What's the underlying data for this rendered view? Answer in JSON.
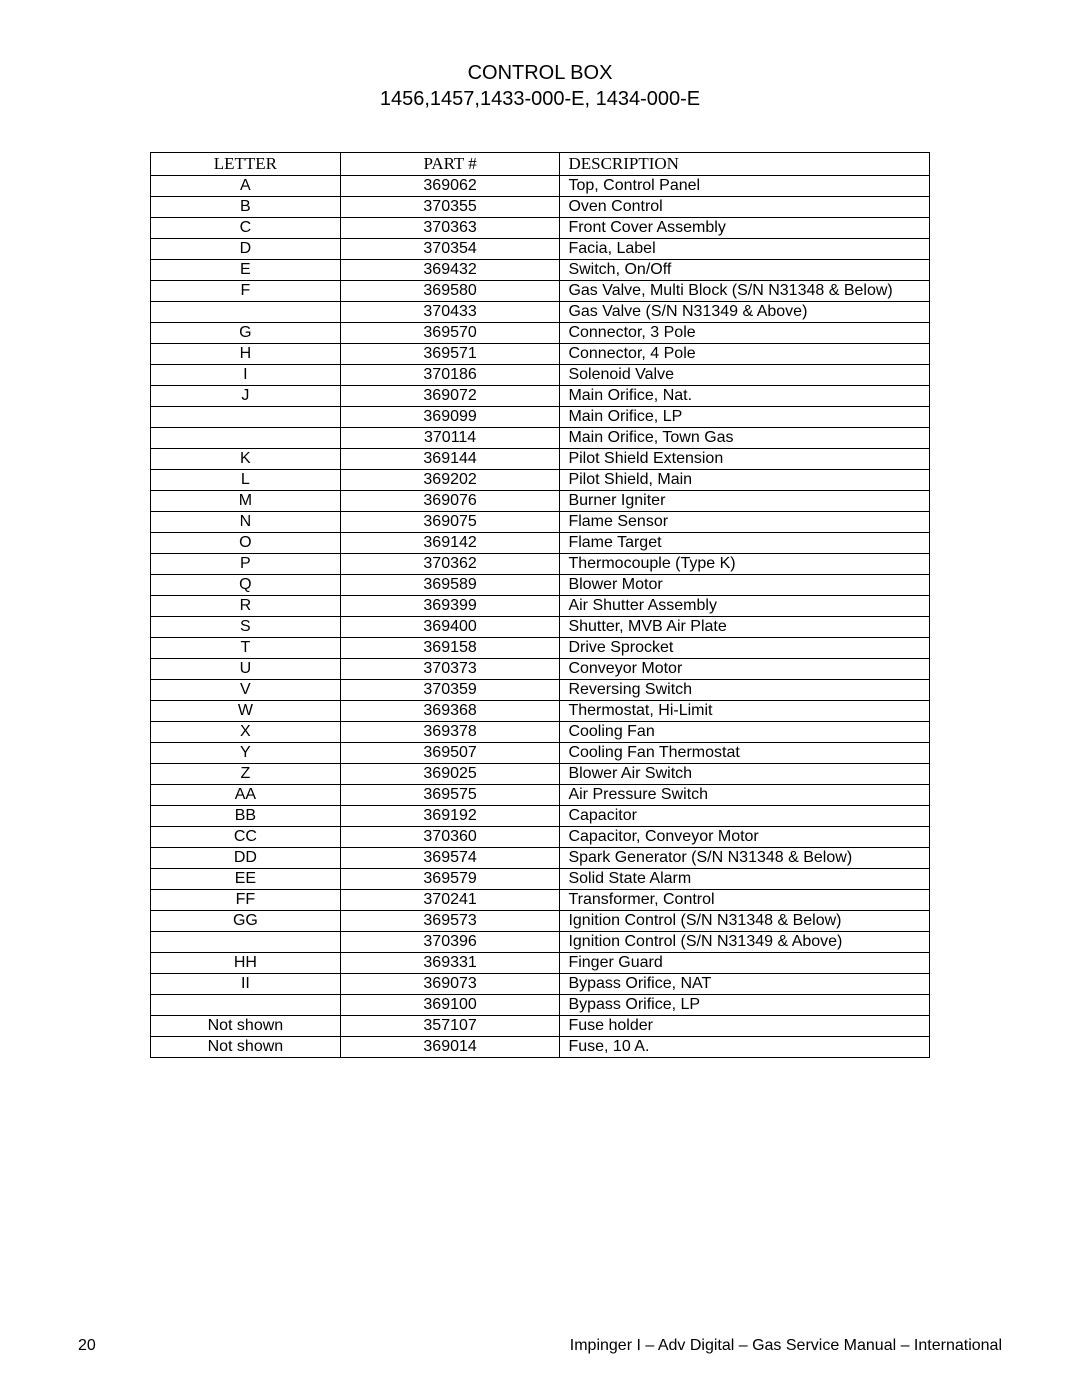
{
  "title": {
    "line1": "CONTROL BOX",
    "line2": "1456,1457,1433-000-E, 1434-000-E"
  },
  "table": {
    "headers": {
      "letter": "LETTER",
      "part": "PART #",
      "description": "DESCRIPTION"
    },
    "rows": [
      {
        "letter": "A",
        "part": "369062",
        "description": "Top, Control Panel"
      },
      {
        "letter": "B",
        "part": "370355",
        "description": "Oven Control"
      },
      {
        "letter": "C",
        "part": "370363",
        "description": "Front Cover Assembly"
      },
      {
        "letter": "D",
        "part": "370354",
        "description": "Facia, Label"
      },
      {
        "letter": "E",
        "part": "369432",
        "description": "Switch, On/Off"
      },
      {
        "letter": "F",
        "part": "369580",
        "description": "Gas Valve, Multi Block (S/N N31348 & Below)"
      },
      {
        "letter": "",
        "part": "370433",
        "description": "Gas Valve (S/N N31349 & Above)"
      },
      {
        "letter": "G",
        "part": "369570",
        "description": "Connector, 3 Pole"
      },
      {
        "letter": "H",
        "part": "369571",
        "description": "Connector, 4 Pole"
      },
      {
        "letter": "I",
        "part": "370186",
        "description": "Solenoid Valve"
      },
      {
        "letter": "J",
        "part": "369072",
        "description": "Main Orifice, Nat."
      },
      {
        "letter": "",
        "part": "369099",
        "description": "Main Orifice, LP"
      },
      {
        "letter": "",
        "part": "370114",
        "description": "Main Orifice, Town Gas"
      },
      {
        "letter": "K",
        "part": "369144",
        "description": "Pilot Shield Extension"
      },
      {
        "letter": "L",
        "part": "369202",
        "description": "Pilot Shield, Main"
      },
      {
        "letter": "M",
        "part": "369076",
        "description": "Burner Igniter"
      },
      {
        "letter": "N",
        "part": "369075",
        "description": "Flame Sensor"
      },
      {
        "letter": "O",
        "part": "369142",
        "description": "Flame Target"
      },
      {
        "letter": "P",
        "part": "370362",
        "description": "Thermocouple (Type K)"
      },
      {
        "letter": "Q",
        "part": "369589",
        "description": "Blower Motor"
      },
      {
        "letter": "R",
        "part": "369399",
        "description": "Air Shutter Assembly"
      },
      {
        "letter": "S",
        "part": "369400",
        "description": "Shutter, MVB Air Plate"
      },
      {
        "letter": "T",
        "part": "369158",
        "description": "Drive Sprocket"
      },
      {
        "letter": "U",
        "part": "370373",
        "description": "Conveyor Motor"
      },
      {
        "letter": "V",
        "part": "370359",
        "description": "Reversing Switch"
      },
      {
        "letter": "W",
        "part": "369368",
        "description": "Thermostat, Hi-Limit"
      },
      {
        "letter": "X",
        "part": "369378",
        "description": "Cooling Fan"
      },
      {
        "letter": "Y",
        "part": "369507",
        "description": "Cooling Fan Thermostat"
      },
      {
        "letter": "Z",
        "part": "369025",
        "description": "Blower Air Switch"
      },
      {
        "letter": "AA",
        "part": "369575",
        "description": "Air Pressure Switch"
      },
      {
        "letter": "BB",
        "part": "369192",
        "description": "Capacitor"
      },
      {
        "letter": "CC",
        "part": "370360",
        "description": "Capacitor, Conveyor Motor"
      },
      {
        "letter": "DD",
        "part": "369574",
        "description": "Spark Generator (S/N N31348 & Below)"
      },
      {
        "letter": "EE",
        "part": "369579",
        "description": "Solid State Alarm"
      },
      {
        "letter": "FF",
        "part": "370241",
        "description": "Transformer, Control"
      },
      {
        "letter": "GG",
        "part": "369573",
        "description": "Ignition Control (S/N N31348 & Below)"
      },
      {
        "letter": "",
        "part": "370396",
        "description": "Ignition Control (S/N N31349 & Above)"
      },
      {
        "letter": "HH",
        "part": "369331",
        "description": "Finger Guard"
      },
      {
        "letter": "II",
        "part": "369073",
        "description": "Bypass Orifice, NAT"
      },
      {
        "letter": "",
        "part": "369100",
        "description": "Bypass Orifice, LP"
      },
      {
        "letter": "Not shown",
        "part": "357107",
        "description": "Fuse holder"
      },
      {
        "letter": "Not shown",
        "part": "369014",
        "description": "Fuse, 10 A."
      }
    ]
  },
  "footer": {
    "page_number": "20",
    "text": "Impinger I – Adv Digital – Gas Service Manual – International"
  }
}
